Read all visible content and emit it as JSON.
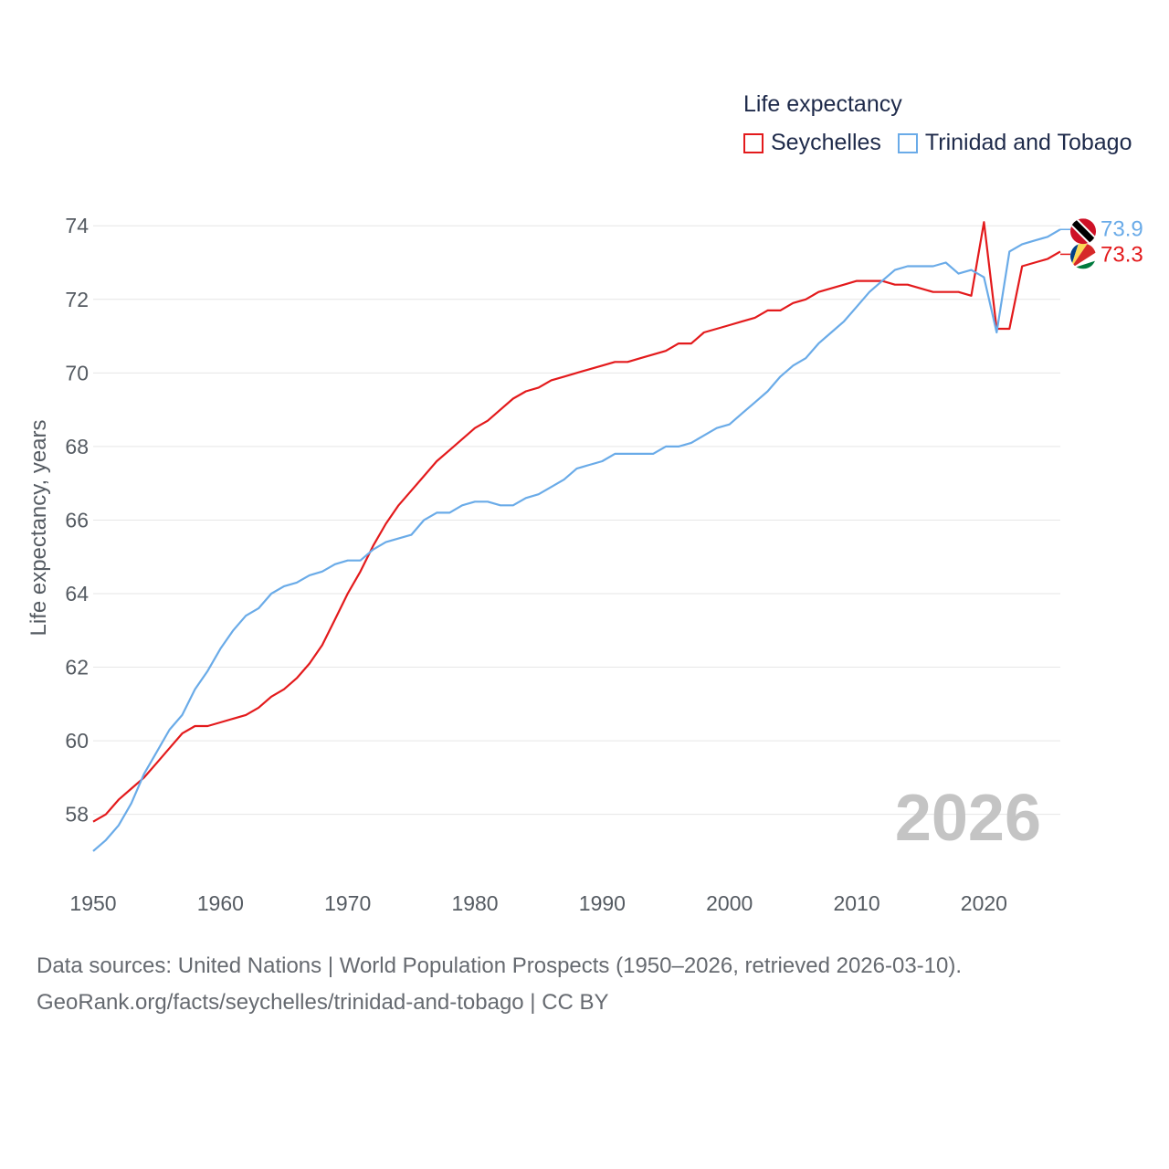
{
  "chart_data": {
    "type": "line",
    "title": "",
    "legend_title": "Life expectancy",
    "legend_position": "top-right",
    "ylabel": "Life expectancy, years",
    "xlabel": "",
    "xlim": [
      1950,
      2026
    ],
    "ylim": [
      56.8,
      74.8
    ],
    "x_ticks": [
      1950,
      1960,
      1970,
      1980,
      1990,
      2000,
      2010,
      2020
    ],
    "y_ticks": [
      58,
      60,
      62,
      64,
      66,
      68,
      70,
      72,
      74
    ],
    "grid": true,
    "year_label": "2026",
    "x": [
      1950,
      1951,
      1952,
      1953,
      1954,
      1955,
      1956,
      1957,
      1958,
      1959,
      1960,
      1961,
      1962,
      1963,
      1964,
      1965,
      1966,
      1967,
      1968,
      1969,
      1970,
      1971,
      1972,
      1973,
      1974,
      1975,
      1976,
      1977,
      1978,
      1979,
      1980,
      1981,
      1982,
      1983,
      1984,
      1985,
      1986,
      1987,
      1988,
      1989,
      1990,
      1991,
      1992,
      1993,
      1994,
      1995,
      1996,
      1997,
      1998,
      1999,
      2000,
      2001,
      2002,
      2003,
      2004,
      2005,
      2006,
      2007,
      2008,
      2009,
      2010,
      2011,
      2012,
      2013,
      2014,
      2015,
      2016,
      2017,
      2018,
      2019,
      2020,
      2021,
      2022,
      2023,
      2024,
      2025,
      2026
    ],
    "series": [
      {
        "name": "Seychelles",
        "color": "#e31a1c",
        "end_label": "73.3",
        "flag": "seychelles-flag",
        "values": [
          57.8,
          58.0,
          58.4,
          58.7,
          59.0,
          59.4,
          59.8,
          60.2,
          60.4,
          60.4,
          60.5,
          60.6,
          60.7,
          60.9,
          61.2,
          61.4,
          61.7,
          62.1,
          62.6,
          63.3,
          64.0,
          64.6,
          65.3,
          65.9,
          66.4,
          66.8,
          67.2,
          67.6,
          67.9,
          68.2,
          68.5,
          68.7,
          69.0,
          69.3,
          69.5,
          69.6,
          69.8,
          69.9,
          70.0,
          70.1,
          70.2,
          70.3,
          70.3,
          70.4,
          70.5,
          70.6,
          70.8,
          70.8,
          71.1,
          71.2,
          71.3,
          71.4,
          71.5,
          71.7,
          71.7,
          71.9,
          72.0,
          72.2,
          72.3,
          72.4,
          72.5,
          72.5,
          72.5,
          72.4,
          72.4,
          72.3,
          72.2,
          72.2,
          72.2,
          72.1,
          74.1,
          71.2,
          71.2,
          72.9,
          73.0,
          73.1,
          73.3
        ]
      },
      {
        "name": "Trinidad and Tobago",
        "color": "#6aabe8",
        "end_label": "73.9",
        "flag": "trinidad-and-tobago-flag",
        "values": [
          57.0,
          57.3,
          57.7,
          58.3,
          59.1,
          59.7,
          60.3,
          60.7,
          61.4,
          61.9,
          62.5,
          63.0,
          63.4,
          63.6,
          64.0,
          64.2,
          64.3,
          64.5,
          64.6,
          64.8,
          64.9,
          64.9,
          65.2,
          65.4,
          65.5,
          65.6,
          66.0,
          66.2,
          66.2,
          66.4,
          66.5,
          66.5,
          66.4,
          66.4,
          66.6,
          66.7,
          66.9,
          67.1,
          67.4,
          67.5,
          67.6,
          67.8,
          67.8,
          67.8,
          67.8,
          68.0,
          68.0,
          68.1,
          68.3,
          68.5,
          68.6,
          68.9,
          69.2,
          69.5,
          69.9,
          70.2,
          70.4,
          70.8,
          71.1,
          71.4,
          71.8,
          72.2,
          72.5,
          72.8,
          72.9,
          72.9,
          72.9,
          73.0,
          72.7,
          72.8,
          72.6,
          71.1,
          73.3,
          73.5,
          73.6,
          73.7,
          73.9
        ]
      }
    ]
  },
  "footer": {
    "sources": "Data sources: United Nations | World Population Prospects (1950–2026, retrieved 2026-03-10).",
    "link": "GeoRank.org/facts/seychelles/trinidad-and-tobago | CC BY"
  }
}
